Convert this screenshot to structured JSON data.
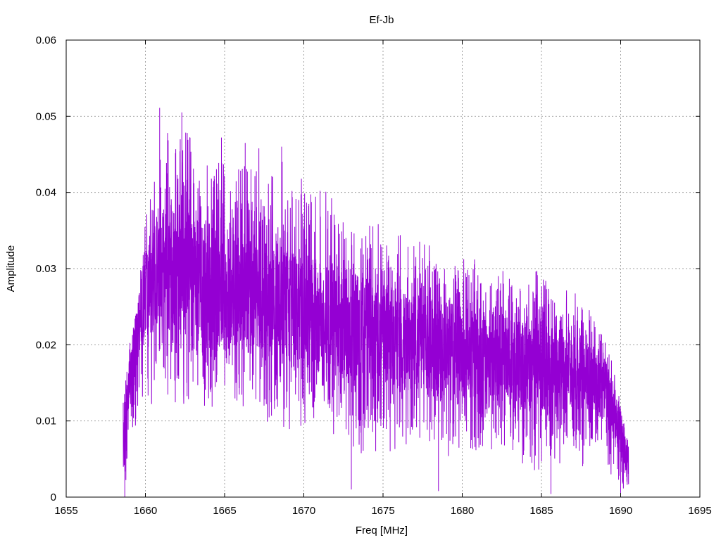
{
  "chart_data": {
    "type": "line",
    "title": "Ef-Jb",
    "xlabel": "Freq [MHz]",
    "ylabel": "Amplitude",
    "xlim": [
      1655,
      1695
    ],
    "ylim": [
      0,
      0.06
    ],
    "x_ticks": [
      1655,
      1660,
      1665,
      1670,
      1675,
      1680,
      1685,
      1690,
      1695
    ],
    "y_ticks": [
      0,
      0.01,
      0.02,
      0.03,
      0.04,
      0.05,
      0.06
    ],
    "x_tick_labels": [
      "1655",
      "1660",
      "1665",
      "1670",
      "1675",
      "1680",
      "1685",
      "1690",
      "1695"
    ],
    "y_tick_labels": [
      "0",
      "0.01",
      "0.02",
      "0.03",
      "0.04",
      "0.05",
      "0.06"
    ],
    "grid": true,
    "legend": "none",
    "series": [
      {
        "color": "#9400d3",
        "x_range": [
          1658.6,
          1690.5
        ],
        "envelope": {
          "x": [
            1658.6,
            1659.0,
            1659.5,
            1660.0,
            1661.0,
            1662.0,
            1663.0,
            1664.0,
            1665.0,
            1666.0,
            1667.0,
            1668.0,
            1669.0,
            1670.0,
            1671.0,
            1672.0,
            1673.0,
            1674.0,
            1675.0,
            1676.0,
            1677.0,
            1678.0,
            1679.0,
            1680.0,
            1681.0,
            1682.0,
            1683.0,
            1684.0,
            1685.0,
            1686.0,
            1687.0,
            1688.0,
            1689.0,
            1689.5,
            1690.0,
            1690.5
          ],
          "mean": [
            0.007,
            0.015,
            0.022,
            0.027,
            0.03,
            0.03,
            0.029,
            0.028,
            0.0275,
            0.027,
            0.026,
            0.026,
            0.025,
            0.024,
            0.0235,
            0.023,
            0.0225,
            0.022,
            0.022,
            0.021,
            0.0205,
            0.02,
            0.0195,
            0.019,
            0.019,
            0.0185,
            0.018,
            0.0175,
            0.0175,
            0.017,
            0.0165,
            0.016,
            0.014,
            0.012,
            0.008,
            0.004
          ],
          "min": [
            0.0,
            0.005,
            0.008,
            0.01,
            0.012,
            0.012,
            0.012,
            0.011,
            0.011,
            0.011,
            0.01,
            0.009,
            0.008,
            0.008,
            0.008,
            0.007,
            0.005,
            0.006,
            0.006,
            0.006,
            0.006,
            0.005,
            0.005,
            0.004,
            0.004,
            0.004,
            0.004,
            0.003,
            0.003,
            0.004,
            0.004,
            0.004,
            0.003,
            0.002,
            0.001,
            0.0
          ],
          "max": [
            0.014,
            0.02,
            0.026,
            0.037,
            0.046,
            0.051,
            0.048,
            0.047,
            0.047,
            0.046,
            0.046,
            0.045,
            0.044,
            0.043,
            0.042,
            0.041,
            0.037,
            0.036,
            0.036,
            0.035,
            0.034,
            0.033,
            0.032,
            0.032,
            0.031,
            0.03,
            0.03,
            0.03,
            0.031,
            0.028,
            0.027,
            0.026,
            0.022,
            0.018,
            0.013,
            0.007
          ],
          "peaks": [
            [
              1660.9,
              0.0511
            ],
            [
              1662.3,
              0.0505
            ],
            [
              1661.4,
              0.0478
            ],
            [
              1664.8,
              0.0472
            ],
            [
              1666.3,
              0.0465
            ],
            [
              1668.6,
              0.046
            ]
          ],
          "dips": [
            [
              1673.0,
              0.001
            ],
            [
              1678.5,
              0.0008
            ],
            [
              1685.6,
              0.0004
            ],
            [
              1690.0,
              0.0005
            ],
            [
              1658.7,
              0.0
            ]
          ]
        }
      }
    ]
  }
}
